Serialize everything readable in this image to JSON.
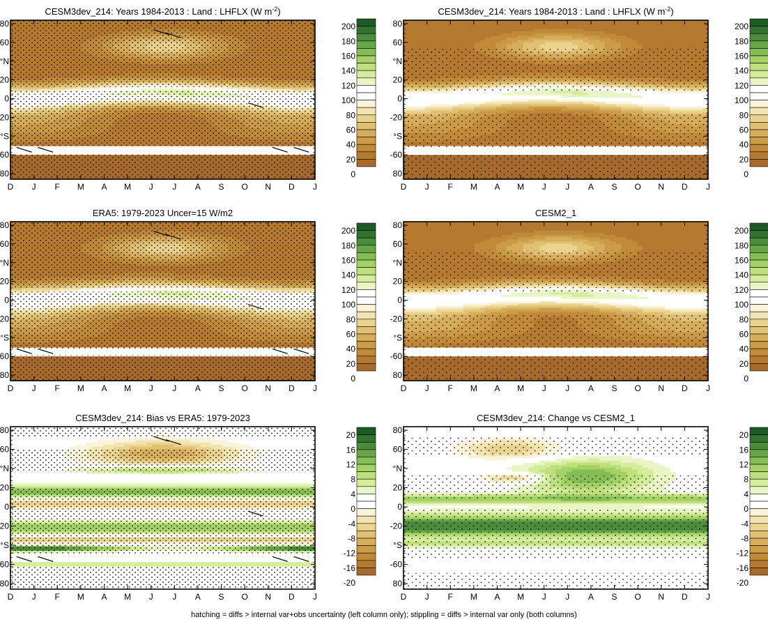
{
  "figure": {
    "footnote": "hatching = diffs > internal var+obs uncertainty (left column only); stippling = diffs > internal var only (both columns)",
    "colors": {
      "brown_ramp": [
        "#a66a2b",
        "#b5792f",
        "#c08a38",
        "#cc9b47",
        "#d6ad5b",
        "#e0c073",
        "#ead38e",
        "#f2e4b0",
        "#faf3da",
        "#ffffff"
      ],
      "green_ramp": [
        "#ffffff",
        "#e9f5c4",
        "#d4ec9c",
        "#bde07c",
        "#a3d165",
        "#85bc55",
        "#66a548",
        "#4b8c3c",
        "#327330",
        "#1e5a26"
      ]
    }
  },
  "chart_data": [
    {
      "type": "heatmap",
      "title": "CESM3dev_214: Years 1984-2013 : Land : LHFLX (W m",
      "title_sup": "-2",
      "title_tail": ")",
      "xlabel": "",
      "ylabel": "",
      "x_ticks": [
        "D",
        "J",
        "F",
        "M",
        "A",
        "M",
        "J",
        "J",
        "A",
        "S",
        "O",
        "N",
        "D",
        "J"
      ],
      "y_ticks": [
        "80",
        "60",
        "°N",
        "20",
        "0",
        "-20",
        "°S",
        "-60",
        "80"
      ],
      "ylim": [
        -90,
        90
      ],
      "colorbar": [
        "200",
        "180",
        "160",
        "140",
        "120",
        "100",
        "80",
        "60",
        "40",
        "20",
        "0"
      ],
      "colorbar_scale": "brown-green",
      "variant": "model_a",
      "stipple": "dense",
      "hatch": true
    },
    {
      "type": "heatmap",
      "title": "CESM3dev_214: Years 1984-2013 : Land : LHFLX (W m",
      "title_sup": "-2",
      "title_tail": ")",
      "xlabel": "",
      "ylabel": "",
      "x_ticks": [
        "D",
        "J",
        "F",
        "M",
        "A",
        "M",
        "J",
        "J",
        "A",
        "S",
        "O",
        "N",
        "D",
        "J"
      ],
      "y_ticks": [
        "80",
        "60",
        "°N",
        "20",
        "0",
        "-20",
        "°S",
        "-60",
        "80"
      ],
      "ylim": [
        -90,
        90
      ],
      "colorbar": [
        "200",
        "180",
        "160",
        "140",
        "120",
        "100",
        "80",
        "60",
        "40",
        "20",
        "0"
      ],
      "colorbar_scale": "brown-green",
      "variant": "model_a",
      "stipple": "sparse",
      "hatch": false
    },
    {
      "type": "heatmap",
      "title": "ERA5: 1979-2023 Uncer=15 W/m2",
      "title_sup": "",
      "title_tail": "",
      "xlabel": "",
      "ylabel": "",
      "x_ticks": [
        "D",
        "J",
        "F",
        "M",
        "A",
        "M",
        "J",
        "J",
        "A",
        "S",
        "O",
        "N",
        "D",
        "J"
      ],
      "y_ticks": [
        "80",
        "60",
        "°N",
        "20",
        "0",
        "-20",
        "°S",
        "-60",
        "80"
      ],
      "ylim": [
        -90,
        90
      ],
      "colorbar": [
        "200",
        "180",
        "160",
        "140",
        "120",
        "100",
        "80",
        "60",
        "40",
        "20",
        "0"
      ],
      "colorbar_scale": "brown-green",
      "variant": "obs",
      "stipple": "dense",
      "hatch": true
    },
    {
      "type": "heatmap",
      "title": "CESM2_1",
      "title_sup": "",
      "title_tail": "",
      "xlabel": "",
      "ylabel": "",
      "x_ticks": [
        "D",
        "J",
        "F",
        "M",
        "A",
        "M",
        "J",
        "J",
        "A",
        "S",
        "O",
        "N",
        "D",
        "J"
      ],
      "y_ticks": [
        "80",
        "60",
        "°N",
        "20",
        "0",
        "-20",
        "°S",
        "-60",
        "80"
      ],
      "ylim": [
        -90,
        90
      ],
      "colorbar": [
        "200",
        "180",
        "160",
        "140",
        "120",
        "100",
        "80",
        "60",
        "40",
        "20",
        "0"
      ],
      "colorbar_scale": "brown-green",
      "variant": "model_b",
      "stipple": "sparse",
      "hatch": false
    },
    {
      "type": "heatmap",
      "title": "CESM3dev_214: Bias vs ERA5: 1979-2023",
      "title_sup": "",
      "title_tail": "",
      "xlabel": "",
      "ylabel": "",
      "x_ticks": [
        "D",
        "J",
        "F",
        "M",
        "A",
        "M",
        "J",
        "J",
        "A",
        "S",
        "O",
        "N",
        "D",
        "J"
      ],
      "y_ticks": [
        "80",
        "60",
        "°N",
        "20",
        "0",
        "-20",
        "°S",
        "-60",
        "80"
      ],
      "ylim": [
        -90,
        90
      ],
      "colorbar": [
        "20",
        "16",
        "12",
        "8",
        "4",
        "0",
        "-4",
        "-8",
        "-12",
        "-16",
        "-20"
      ],
      "colorbar_scale": "brown-green-diverging",
      "variant": "bias",
      "stipple": "dense",
      "hatch": true
    },
    {
      "type": "heatmap",
      "title": "CESM3dev_214: Change vs CESM2_1",
      "title_sup": "",
      "title_tail": "",
      "xlabel": "",
      "ylabel": "",
      "x_ticks": [
        "D",
        "J",
        "F",
        "M",
        "A",
        "M",
        "J",
        "J",
        "A",
        "S",
        "O",
        "N",
        "D",
        "J"
      ],
      "y_ticks": [
        "80",
        "60",
        "°N",
        "20",
        "0",
        "-20",
        "°S",
        "-60",
        "80"
      ],
      "ylim": [
        -90,
        90
      ],
      "colorbar": [
        "20",
        "16",
        "12",
        "8",
        "4",
        "0",
        "-4",
        "-8",
        "-12",
        "-16",
        "-20"
      ],
      "colorbar_scale": "brown-green-diverging",
      "variant": "change",
      "stipple": "sparse",
      "hatch": false
    }
  ]
}
